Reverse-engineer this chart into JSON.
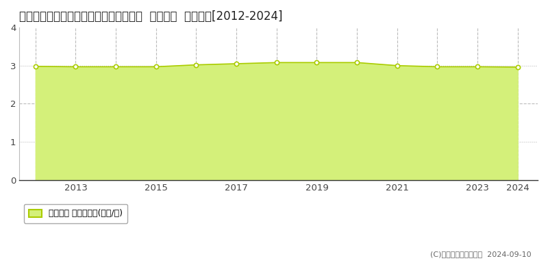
{
  "title": "宮城県石巻市須江字関ノ入１３番１０外  地価公示  地価推移[2012-2024]",
  "years": [
    2012,
    2013,
    2014,
    2015,
    2016,
    2017,
    2018,
    2019,
    2020,
    2021,
    2022,
    2023,
    2024
  ],
  "values": [
    2.98,
    2.97,
    2.97,
    2.97,
    3.02,
    3.05,
    3.08,
    3.08,
    3.08,
    3.0,
    2.97,
    2.97,
    2.96
  ],
  "line_color": "#aacc00",
  "fill_color": "#d4f07a",
  "marker_face": "#ffffff",
  "marker_edge": "#aacc00",
  "bg_color": "#ffffff",
  "ylim": [
    0,
    4
  ],
  "yticks": [
    0,
    1,
    2,
    3,
    4
  ],
  "xlim_min": 2011.6,
  "xlim_max": 2024.5,
  "xticks": [
    2013,
    2015,
    2017,
    2019,
    2021,
    2023,
    2024
  ],
  "vgrid_years": [
    2012,
    2013,
    2014,
    2015,
    2016,
    2017,
    2018,
    2019,
    2020,
    2021,
    2022,
    2023,
    2024
  ],
  "legend_label": "地価公示 平均坪単価(万円/坪)",
  "copyright_text": "(C)土地価格ドットコム  2024-09-10",
  "title_fontsize": 12,
  "tick_fontsize": 9.5
}
